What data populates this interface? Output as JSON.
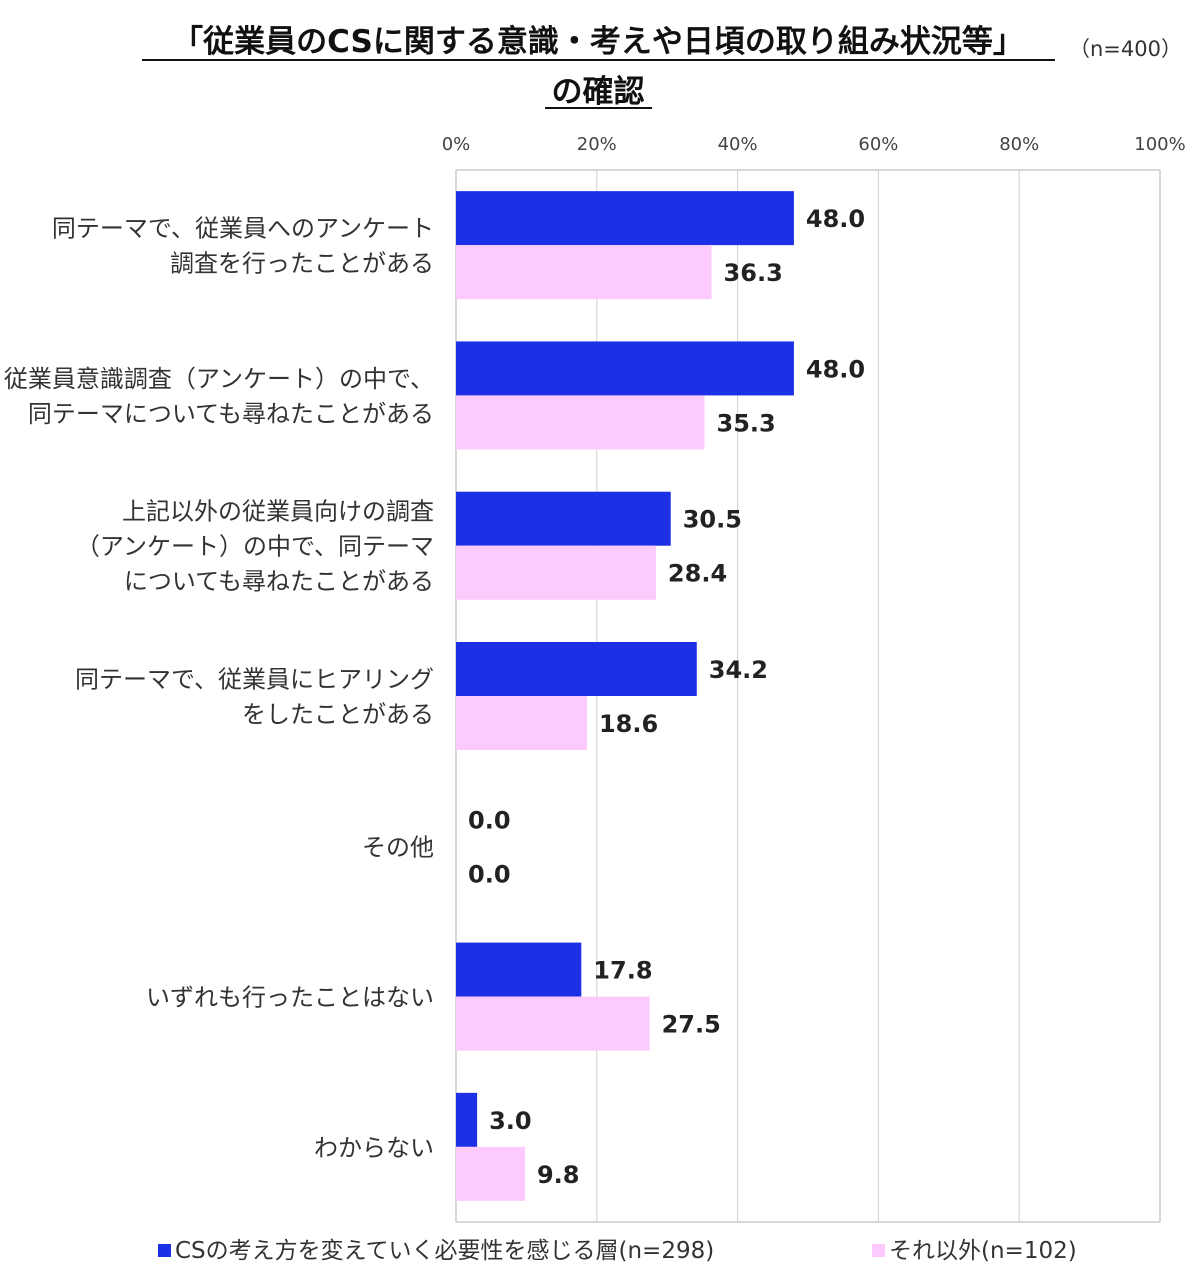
{
  "title_line1": "「従業員のCSに関する意識・考えや日頃の取り組み状況等」",
  "title_line2": "の確認",
  "sample_note": "（n=400）",
  "chart_data": {
    "type": "bar",
    "orientation": "horizontal",
    "xlim": [
      0,
      100
    ],
    "ticks": [
      "0%",
      "20%",
      "40%",
      "60%",
      "80%",
      "100%"
    ],
    "grid": true,
    "legend_position": "bottom",
    "categories": [
      [
        "同テーマで、従業員へのアンケート",
        "調査を行ったことがある"
      ],
      [
        "従業員意識調査（アンケート）の中で、",
        "同テーマについても尋ねたことがある"
      ],
      [
        "上記以外の従業員向けの調査",
        "（アンケート）の中で、同テーマ",
        "についても尋ねたことがある"
      ],
      [
        "同テーマで、従業員にヒアリング",
        "をしたことがある"
      ],
      [
        "その他"
      ],
      [
        "いずれも行ったことはない"
      ],
      [
        "わからない"
      ]
    ],
    "series": [
      {
        "name": "CSの考え方を変えていく必要性を感じる層(n=298)",
        "color": "#1c30e6",
        "values": [
          48.0,
          48.0,
          30.5,
          34.2,
          0.0,
          17.8,
          3.0
        ],
        "labels": [
          "48.0",
          "48.0",
          "30.5",
          "34.2",
          "0.0",
          "17.8",
          "3.0"
        ]
      },
      {
        "name": "それ以外(n=102)",
        "color": "#fccafc",
        "values": [
          36.3,
          35.3,
          28.4,
          18.6,
          0.0,
          27.5,
          9.8
        ],
        "labels": [
          "36.3",
          "35.3",
          "28.4",
          "18.6",
          "0.0",
          "27.5",
          "9.8"
        ]
      }
    ]
  }
}
